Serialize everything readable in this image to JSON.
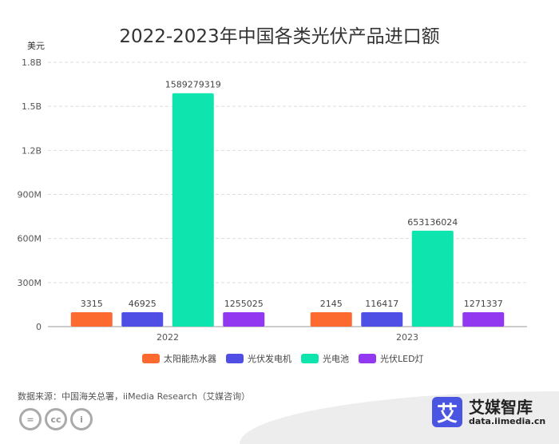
{
  "chart_data": {
    "type": "bar",
    "title": "2022-2023年中国各类光伏产品进口额",
    "ylabel": "美元",
    "ylim": [
      0,
      1800000000
    ],
    "yticks": [
      0,
      300000000,
      600000000,
      900000000,
      1200000000,
      1500000000,
      1800000000
    ],
    "ytick_labels": [
      "0",
      "300M",
      "600M",
      "900M",
      "1.2B",
      "1.5B",
      "1.8B"
    ],
    "grid": true,
    "legend": "bottom",
    "categories": [
      "2022",
      "2023"
    ],
    "series": [
      {
        "name": "太阳能热水器",
        "color": "#fd6a2f",
        "values": [
          3315,
          2145
        ]
      },
      {
        "name": "光伏发电机",
        "color": "#4f4fe6",
        "values": [
          46925,
          116417
        ]
      },
      {
        "name": "光电池",
        "color": "#0ee4ae",
        "values": [
          1589279319,
          653136024
        ]
      },
      {
        "name": "光伏LED灯",
        "color": "#9238f0",
        "values": [
          1255025,
          1271337
        ]
      }
    ]
  },
  "footer": {
    "source": "数据来源：中国海关总署，iiMedia Research（艾媒咨询）",
    "logo_name": "艾媒智库",
    "logo_url": "data.iimedia.cn",
    "logo_mark": "艾",
    "license_icons": [
      "nd-icon",
      "cc-icon",
      "by-icon"
    ]
  }
}
